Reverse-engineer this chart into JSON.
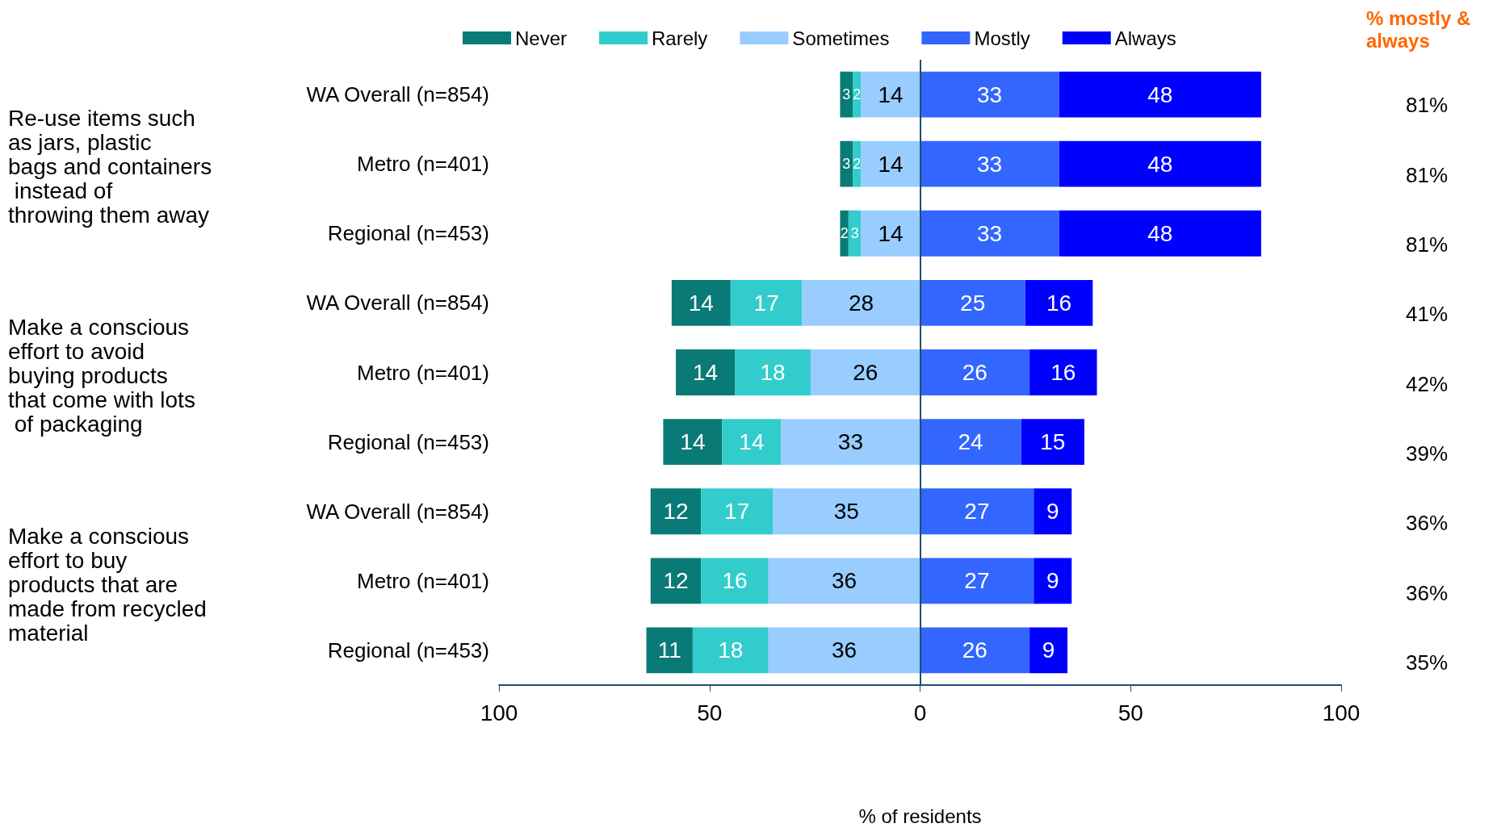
{
  "chart_data": {
    "type": "bar",
    "orientation": "horizontal",
    "xlabel": "% of residents",
    "categories": [
      "WA Overall (n=854)",
      "Metro (n=401)",
      "Regional (n=453)",
      "WA Overall (n=854)",
      "Metro (n=401)",
      "Regional (n=453)",
      "WA Overall (n=854)",
      "Metro (n=401)",
      "Regional (n=453)"
    ],
    "series": [
      {
        "name": "Never",
        "color": "#0a7a76",
        "values": [
          3,
          3,
          2,
          14,
          14,
          14,
          12,
          12,
          11
        ],
        "base": [
          -19,
          -19,
          -19,
          -59,
          -58,
          -61,
          -64,
          -64,
          -65
        ]
      },
      {
        "name": "Rarely",
        "color": "#33cccc",
        "values": [
          2,
          2,
          3,
          17,
          18,
          14,
          17,
          16,
          18
        ],
        "base": [
          -16,
          -16,
          -17,
          -45,
          -44,
          -47,
          -52,
          -52,
          -54
        ]
      },
      {
        "name": "Sometimes",
        "color": "#99ccff",
        "values": [
          14,
          14,
          14,
          28,
          26,
          33,
          35,
          36,
          36
        ],
        "base": [
          -14,
          -14,
          -14,
          -28,
          -26,
          -33,
          -35,
          -36,
          -36
        ]
      },
      {
        "name": "Mostly",
        "color": "#3366ff",
        "values": [
          33,
          33,
          33,
          25,
          26,
          24,
          27,
          27,
          26
        ],
        "base": [
          0,
          0,
          0,
          0,
          0,
          0,
          0,
          0,
          0
        ]
      },
      {
        "name": "Always",
        "color": "#0000ff",
        "values": [
          48,
          48,
          48,
          16,
          16,
          15,
          9,
          9,
          9
        ],
        "base": [
          33,
          33,
          33,
          25,
          26,
          24,
          27,
          27,
          26
        ]
      }
    ],
    "data_labels": true,
    "xlim": [
      -100,
      100
    ],
    "xticks": [
      {
        "value": -100,
        "label": "100"
      },
      {
        "value": -50,
        "label": "50"
      },
      0,
      50,
      100
    ],
    "ref_lines": [
      {
        "axis": "x",
        "value": 0,
        "color": "#1f4e6e"
      }
    ],
    "annotations": [
      "% mostly & always",
      "Re-use items such as jars, plastic bags and containers instead of throwing them away",
      "Make a conscious effort to avoid buying products that come with lots of packaging",
      "Make a conscious effort to buy products that are made from recycled material",
      "81%",
      "81%",
      "81%",
      "41%",
      "42%",
      "39%",
      "36%",
      "36%",
      "35%"
    ],
    "legend": "top",
    "grid": false
  }
}
